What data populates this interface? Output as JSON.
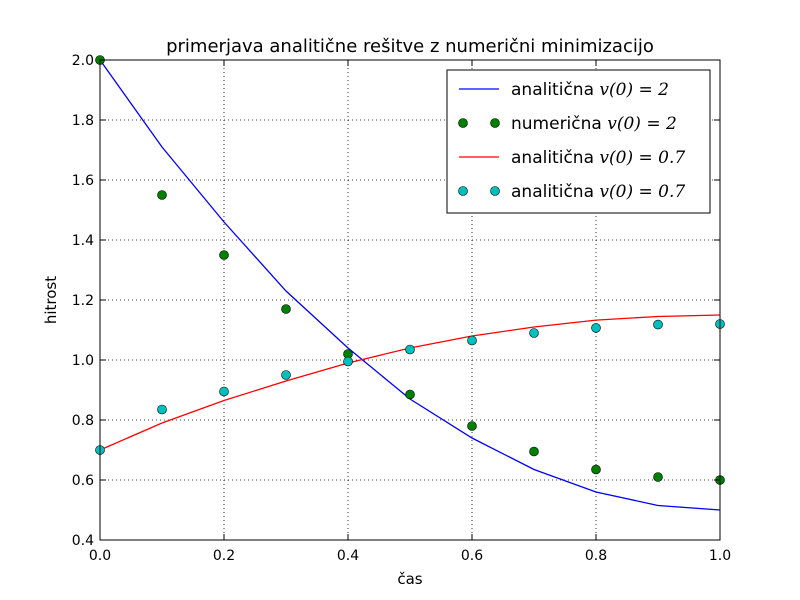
{
  "chart_data": {
    "type": "line",
    "title": "primerjava analitične rešitve z numerični minimizacijo",
    "xlabel": "čas",
    "ylabel": "hitrost",
    "xlim": [
      0.0,
      1.0
    ],
    "ylim": [
      0.4,
      2.0
    ],
    "x_ticks": [
      "0.0",
      "0.2",
      "0.4",
      "0.6",
      "0.8",
      "1.0"
    ],
    "y_ticks": [
      "0.4",
      "0.6",
      "0.8",
      "1.0",
      "1.2",
      "1.4",
      "1.6",
      "1.8",
      "2.0"
    ],
    "grid": true,
    "legend_position": "top-right",
    "series": [
      {
        "name": "analitična",
        "name_math": "v(0) = 2",
        "style": "line",
        "color": "#0000ff",
        "x": [
          0.0,
          0.1,
          0.2,
          0.3,
          0.4,
          0.5,
          0.6,
          0.7,
          0.8,
          0.9,
          1.0
        ],
        "y": [
          2.0,
          1.71,
          1.46,
          1.23,
          1.04,
          0.87,
          0.74,
          0.635,
          0.56,
          0.515,
          0.5
        ]
      },
      {
        "name": "numerična",
        "name_math": "v(0) = 2",
        "style": "markers",
        "color": "#008000",
        "x": [
          0.0,
          0.1,
          0.2,
          0.3,
          0.4,
          0.5,
          0.6,
          0.7,
          0.8,
          0.9,
          1.0
        ],
        "y": [
          2.0,
          1.55,
          1.35,
          1.17,
          1.02,
          0.885,
          0.78,
          0.695,
          0.635,
          0.61,
          0.6
        ]
      },
      {
        "name": "analitična",
        "name_math": "v(0) = 0.7",
        "style": "line",
        "color": "#ff0000",
        "x": [
          0.0,
          0.1,
          0.2,
          0.3,
          0.4,
          0.5,
          0.6,
          0.7,
          0.8,
          0.9,
          1.0
        ],
        "y": [
          0.7,
          0.79,
          0.865,
          0.93,
          0.99,
          1.04,
          1.08,
          1.11,
          1.133,
          1.145,
          1.15
        ]
      },
      {
        "name": "analitična",
        "name_math": "v(0) = 0.7",
        "style": "markers",
        "color": "#00bfbf",
        "x": [
          0.0,
          0.1,
          0.2,
          0.3,
          0.4,
          0.5,
          0.6,
          0.7,
          0.8,
          0.9,
          1.0
        ],
        "y": [
          0.7,
          0.835,
          0.895,
          0.95,
          0.995,
          1.035,
          1.065,
          1.09,
          1.107,
          1.118,
          1.12
        ]
      }
    ]
  }
}
